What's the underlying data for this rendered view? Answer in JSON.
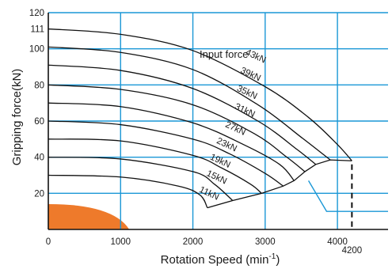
{
  "chart_data": {
    "type": "line",
    "xlabel": "Rotation Speed (min",
    "xlabel_sup": "-1",
    "xlabel_close": ")",
    "ylabel": "Gripping force(kN)",
    "xlim": [
      0,
      4700
    ],
    "ylim": [
      0,
      120
    ],
    "x_ticks": [
      "0",
      "1000",
      "2000",
      "3000",
      "4000"
    ],
    "x_extra_tick": "4200",
    "y_ticks": [
      "20",
      "40",
      "60",
      "80",
      "100",
      "111",
      "120"
    ],
    "legend_title": "Input force",
    "grid": true,
    "colors": {
      "grid": "#1a97d6",
      "curve": "#111111",
      "axis": "#111111",
      "blob": "#ee7a2b",
      "pointer": "#1a97d6"
    },
    "series": [
      {
        "name": "43kN",
        "points": [
          [
            0,
            111
          ],
          [
            1000,
            108
          ],
          [
            2000,
            99
          ],
          [
            3000,
            79
          ],
          [
            3600,
            62
          ],
          [
            4000,
            47
          ],
          [
            4200,
            38
          ]
        ]
      },
      {
        "name": "39kN",
        "points": [
          [
            0,
            101
          ],
          [
            1000,
            98
          ],
          [
            2000,
            88.5
          ],
          [
            2900,
            69
          ],
          [
            3500,
            51
          ],
          [
            3900,
            38.5
          ]
        ]
      },
      {
        "name": "35kN",
        "points": [
          [
            0,
            91
          ],
          [
            1000,
            88
          ],
          [
            2000,
            78
          ],
          [
            2900,
            60
          ],
          [
            3450,
            44
          ],
          [
            3700,
            36
          ]
        ]
      },
      {
        "name": "31kN",
        "points": [
          [
            0,
            80
          ],
          [
            1000,
            77.5
          ],
          [
            2000,
            69
          ],
          [
            2850,
            53
          ],
          [
            3300,
            40
          ],
          [
            3550,
            32
          ]
        ]
      },
      {
        "name": "27kN",
        "points": [
          [
            0,
            70
          ],
          [
            1000,
            68
          ],
          [
            2000,
            59
          ],
          [
            2700,
            47
          ],
          [
            3200,
            36
          ],
          [
            3400,
            27
          ]
        ]
      },
      {
        "name": "23kN",
        "points": [
          [
            0,
            60
          ],
          [
            1000,
            58
          ],
          [
            2000,
            50
          ],
          [
            2500,
            42
          ],
          [
            3000,
            31
          ],
          [
            3250,
            24
          ]
        ]
      },
      {
        "name": "19kN",
        "points": [
          [
            0,
            50
          ],
          [
            1000,
            49
          ],
          [
            2000,
            41
          ],
          [
            2400,
            34
          ],
          [
            2800,
            25
          ],
          [
            2950,
            20
          ]
        ]
      },
      {
        "name": "15kN",
        "points": [
          [
            0,
            40
          ],
          [
            1000,
            39
          ],
          [
            2000,
            32
          ],
          [
            2300,
            25
          ],
          [
            2550,
            16
          ]
        ]
      },
      {
        "name": "11kN",
        "points": [
          [
            0,
            30
          ],
          [
            1000,
            29
          ],
          [
            1800,
            24
          ],
          [
            2100,
            19
          ],
          [
            2200,
            12
          ]
        ]
      }
    ],
    "envelope": [
      [
        2200,
        12
      ],
      [
        2550,
        16
      ],
      [
        2950,
        20
      ],
      [
        3250,
        24
      ],
      [
        3400,
        27
      ],
      [
        3550,
        32
      ],
      [
        3700,
        36
      ],
      [
        3900,
        38.5
      ],
      [
        4200,
        38
      ]
    ],
    "label_positions": [
      [
        2720,
        97
      ],
      [
        2650,
        87
      ],
      [
        2600,
        77
      ],
      [
        2570,
        67
      ],
      [
        2440,
        57
      ],
      [
        2320,
        48
      ],
      [
        2230,
        39
      ],
      [
        2180,
        30
      ],
      [
        2080,
        21
      ]
    ]
  }
}
